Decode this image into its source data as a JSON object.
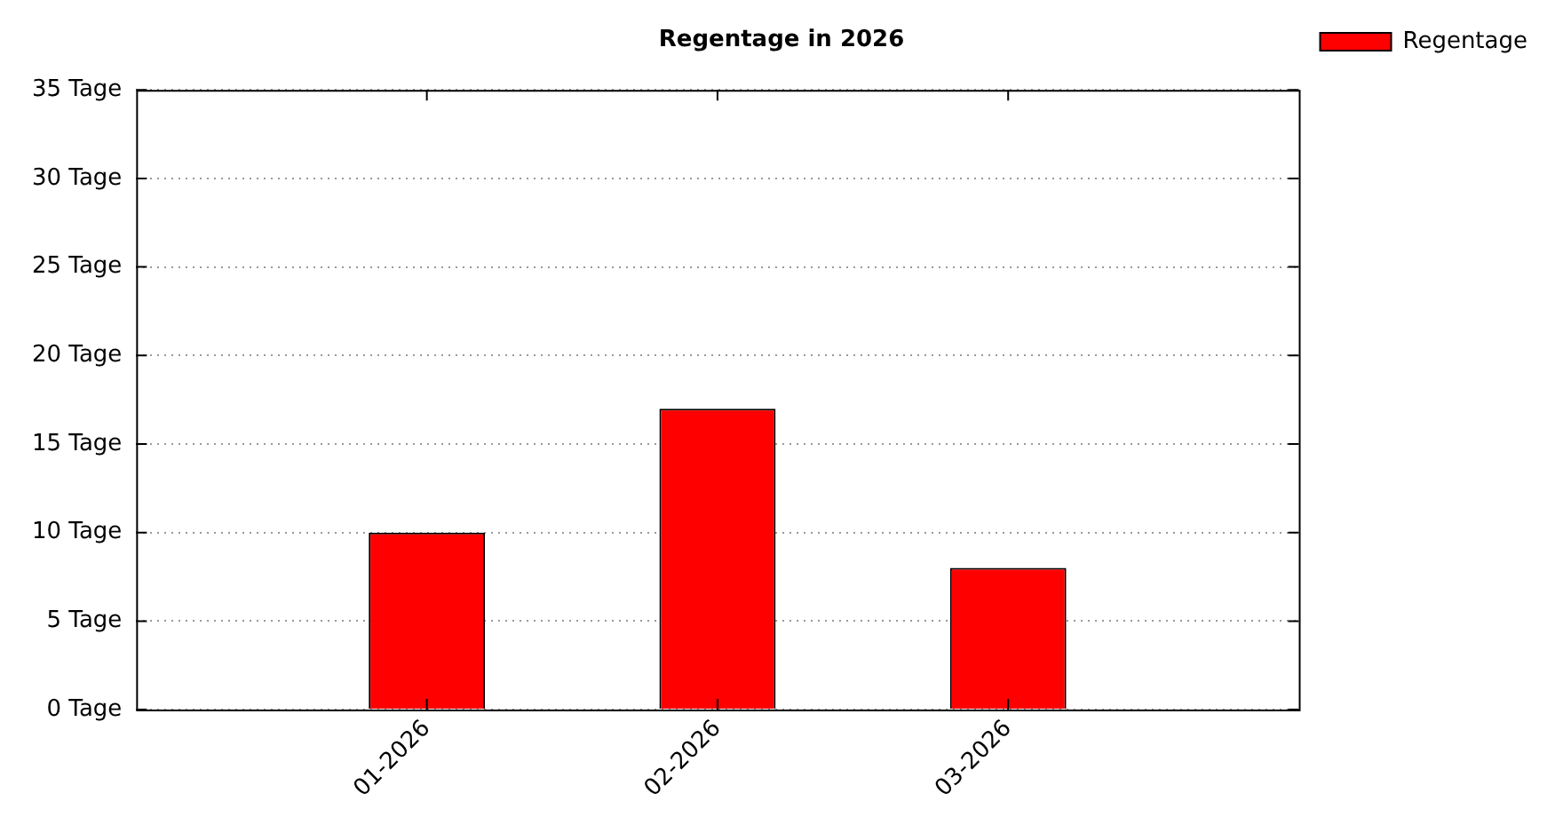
{
  "chart_data": {
    "type": "bar",
    "title": "Regentage in 2026",
    "categories": [
      "01-2026",
      "02-2026",
      "03-2026"
    ],
    "series": [
      {
        "name": "Regentage",
        "color": "#ff0000",
        "values": [
          10,
          17,
          8
        ]
      }
    ],
    "ylim": [
      0,
      35
    ],
    "yticks": [
      {
        "value": 0,
        "label": "0 Tage"
      },
      {
        "value": 5,
        "label": "5 Tage"
      },
      {
        "value": 10,
        "label": "10 Tage"
      },
      {
        "value": 15,
        "label": "15 Tage"
      },
      {
        "value": 20,
        "label": "20 Tage"
      },
      {
        "value": 25,
        "label": "25 Tage"
      },
      {
        "value": 30,
        "label": "30 Tage"
      },
      {
        "value": 35,
        "label": "35 Tage"
      }
    ],
    "grid": "y",
    "legend": "top right"
  }
}
